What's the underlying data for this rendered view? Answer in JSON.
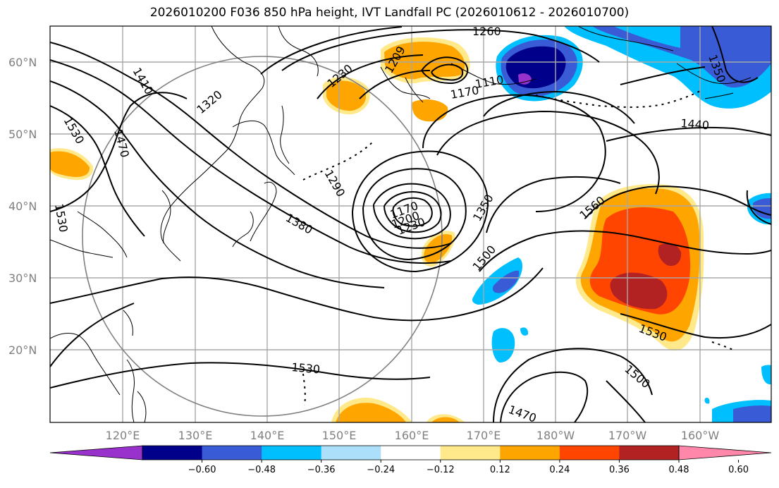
{
  "title": "2026010200 F036 850 hPa height, IVT Landfall PC (2026010612 - 2026010700)",
  "lat_labels": [
    "60°N",
    "50°N",
    "40°N",
    "30°N",
    "20°N"
  ],
  "lon_labels": [
    "120°E",
    "130°E",
    "140°E",
    "150°E",
    "160°E",
    "170°E",
    "180°W",
    "170°W",
    "160°W"
  ],
  "contour_labels": [
    "1260",
    "1230",
    "1209",
    "1110",
    "1170",
    "1320",
    "1410",
    "1530",
    "1470",
    "1530",
    "1290",
    "1380",
    "1170",
    "1200",
    "1230",
    "1350",
    "1500",
    "1560",
    "1440",
    "1350",
    "1530",
    "1530",
    "1500",
    "1470"
  ],
  "colorbar": {
    "colors": [
      "#9932cc",
      "#00008b",
      "#3a5bd6",
      "#00bfff",
      "#acdffa",
      "#ffffff",
      "#ffe98a",
      "#ffa500",
      "#ff4500",
      "#b22222",
      "#ff88aa"
    ],
    "tick_labels": [
      "−0.60",
      "−0.48",
      "−0.36",
      "−0.24",
      "−0.12",
      "0.12",
      "0.24",
      "0.36",
      "0.48",
      "0.60"
    ]
  }
}
